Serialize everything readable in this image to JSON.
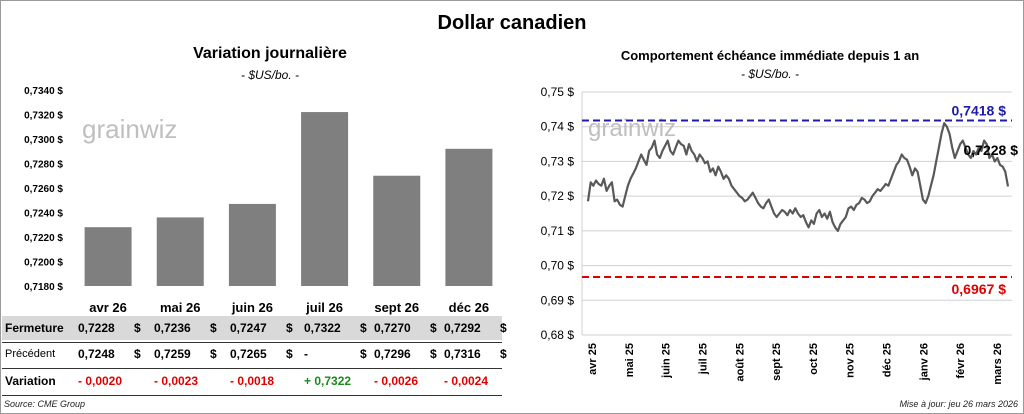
{
  "title": "Dollar canadien",
  "left": {
    "title": "Variation  journalière",
    "subtitle": "- $US/bo. -"
  },
  "right": {
    "title": "Comportement échéance immédiate depuis 1 an",
    "subtitle": "- $US/bo. -"
  },
  "chart_data": [
    {
      "type": "bar",
      "categories": [
        "avr 26",
        "mai 26",
        "juin 26",
        "juil 26",
        "sept 26",
        "déc 26"
      ],
      "values": [
        0.7228,
        0.7236,
        0.7247,
        0.7322,
        0.727,
        0.7292
      ],
      "ylim": [
        0.718,
        0.734
      ],
      "yticks": [
        "0,7180 $",
        "0,7200 $",
        "0,7220 $",
        "0,7240 $",
        "0,7260 $",
        "0,7280 $",
        "0,7300 $",
        "0,7320 $",
        "0,7340 $"
      ],
      "color": "#7f7f7f"
    },
    {
      "type": "line",
      "ylim": [
        0.68,
        0.75
      ],
      "yticks": [
        "0,68 $",
        "0,69 $",
        "0,70 $",
        "0,71 $",
        "0,72 $",
        "0,73 $",
        "0,74 $",
        "0,75 $"
      ],
      "xticks": [
        "avr 25",
        "mai 25",
        "juin 25",
        "juil 25",
        "août 25",
        "sept 25",
        "oct 25",
        "nov 25",
        "déc 25",
        "janv 26",
        "févr 26",
        "mars 26"
      ],
      "series": [
        {
          "color": "#595959",
          "values": [
            0.7185,
            0.724,
            0.723,
            0.7245,
            0.7235,
            0.723,
            0.725,
            0.7215,
            0.723,
            0.724,
            0.7185,
            0.719,
            0.7175,
            0.717,
            0.72,
            0.723,
            0.725,
            0.7265,
            0.728,
            0.73,
            0.732,
            0.7305,
            0.729,
            0.733,
            0.734,
            0.736,
            0.732,
            0.731,
            0.733,
            0.7345,
            0.736,
            0.733,
            0.732,
            0.734,
            0.736,
            0.735,
            0.7345,
            0.732,
            0.735,
            0.733,
            0.732,
            0.73,
            0.732,
            0.731,
            0.7295,
            0.73,
            0.727,
            0.728,
            0.726,
            0.7285,
            0.727,
            0.725,
            0.726,
            0.725,
            0.723,
            0.722,
            0.721,
            0.72,
            0.7195,
            0.7185,
            0.719,
            0.72,
            0.721,
            0.7195,
            0.718,
            0.717,
            0.7165,
            0.718,
            0.719,
            0.717,
            0.715,
            0.714,
            0.715,
            0.716,
            0.7155,
            0.7145,
            0.716,
            0.715,
            0.7165,
            0.715,
            0.714,
            0.7145,
            0.7125,
            0.711,
            0.713,
            0.712,
            0.715,
            0.716,
            0.714,
            0.715,
            0.7135,
            0.7155,
            0.7125,
            0.711,
            0.71,
            0.712,
            0.713,
            0.714,
            0.7165,
            0.717,
            0.716,
            0.7175,
            0.718,
            0.7195,
            0.719,
            0.718,
            0.7185,
            0.72,
            0.721,
            0.722,
            0.7215,
            0.7225,
            0.7235,
            0.723,
            0.725,
            0.727,
            0.729,
            0.73,
            0.732,
            0.731,
            0.7305,
            0.7285,
            0.726,
            0.728,
            0.727,
            0.723,
            0.719,
            0.718,
            0.72,
            0.723,
            0.726,
            0.73,
            0.734,
            0.738,
            0.741,
            0.74,
            0.738,
            0.734,
            0.731,
            0.733,
            0.735,
            0.736,
            0.734,
            0.732,
            0.731,
            0.733,
            0.732,
            0.734,
            0.733,
            0.736,
            0.735,
            0.731,
            0.732,
            0.73,
            0.731,
            0.729,
            0.7285,
            0.727,
            0.7228
          ]
        }
      ],
      "reference_lines": [
        {
          "value": 0.7418,
          "label": "0,7418 $",
          "color": "#1c1ca8"
        },
        {
          "value": 0.6967,
          "label": "0,6967 $",
          "color": "#e00000"
        }
      ],
      "last_label": "0,7228 $"
    }
  ],
  "table": {
    "columns": [
      "avr 26",
      "mai 26",
      "juin 26",
      "juil 26",
      "sept 26",
      "déc 26"
    ],
    "rows": [
      {
        "label": "Fermeture",
        "cells": [
          "0,7228",
          "0,7236",
          "0,7247",
          "0,7322",
          "0,7270",
          "0,7292"
        ],
        "unit": "$",
        "bg": "#d9d9d9",
        "color": "#000000"
      },
      {
        "label": "Précédent",
        "cells": [
          "0,7248",
          "0,7259",
          "0,7265",
          "-",
          "0,7296",
          "0,7316"
        ],
        "unit": "$",
        "bg": "#ffffff",
        "color": "#000000"
      },
      {
        "label": "Variation",
        "cells": [
          "- 0,0020",
          "- 0,0023",
          "- 0,0018",
          "+ 0,7322",
          "- 0,0026",
          "- 0,0024"
        ],
        "unit": "",
        "bg": "#ffffff",
        "colors": [
          "#e00000",
          "#e00000",
          "#e00000",
          "#1a8a1a",
          "#e00000",
          "#e00000"
        ]
      }
    ]
  },
  "footer": {
    "source": "Source: CME Group",
    "updated": "Mise à jour: jeu 26 mars 2026"
  },
  "watermark": "grainwiz"
}
